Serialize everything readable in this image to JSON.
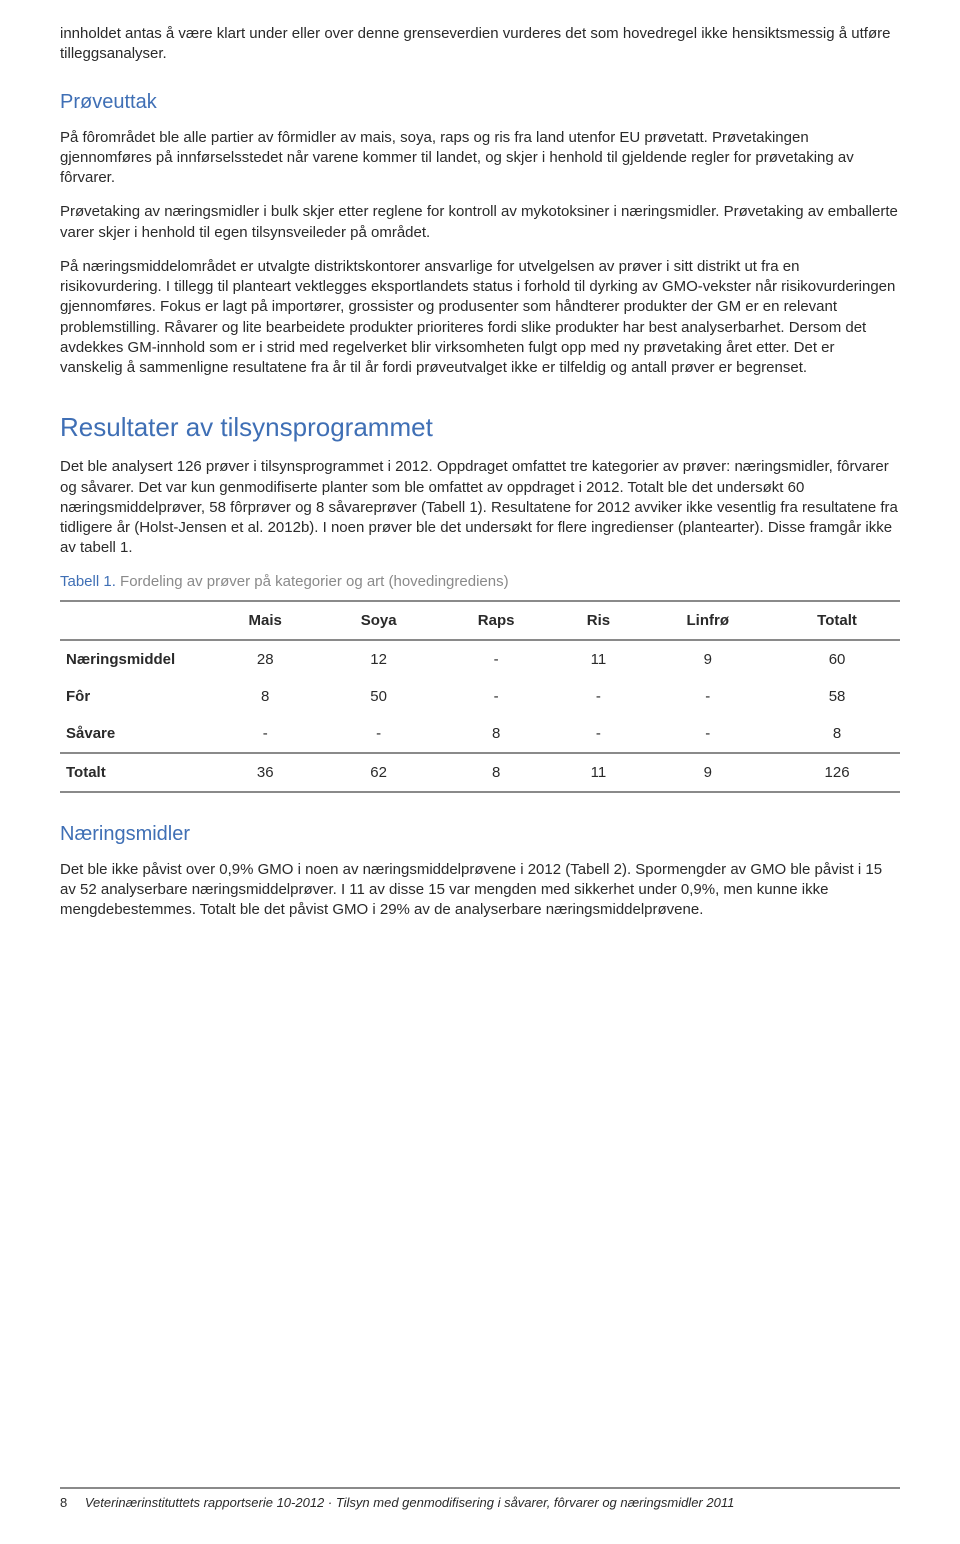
{
  "intro_para": "innholdet antas å være klart under eller over denne grenseverdien vurderes det som hovedregel ikke hensiktsmessig å utføre tilleggsanalyser.",
  "h_proveuttak": "Prøveuttak",
  "proveuttak_p1": "På fôrområdet ble alle partier av fôrmidler av mais, soya, raps og ris fra land utenfor EU prøvetatt. Prøvetakingen gjennomføres på innførselsstedet når varene kommer til landet, og skjer i henhold til gjeldende regler for prøvetaking av fôrvarer.",
  "proveuttak_p2": "Prøvetaking av næringsmidler i bulk skjer etter reglene for kontroll av mykotoksiner i næringsmidler. Prøvetaking av emballerte varer skjer i henhold til egen tilsynsveileder på området.",
  "proveuttak_p3": "På næringsmiddelområdet er utvalgte distriktskontorer ansvarlige for utvelgelsen av prøver i sitt distrikt ut fra en risikovurdering. I tillegg til planteart vektlegges eksportlandets status i forhold til dyrking av GMO-vekster når risikovurderingen gjennomføres. Fokus er lagt på importører, grossister og produsenter som håndterer produkter der GM er en relevant problemstilling. Råvarer og lite bearbeidete produkter prioriteres fordi slike produkter har best analyserbarhet. Dersom det avdekkes GM-innhold som er i strid med regelverket blir virksomheten fulgt opp med ny prøvetaking året etter. Det er vanskelig å sammenligne resultatene fra år til år fordi prøveutvalget ikke er tilfeldig og antall prøver er begrenset.",
  "h_resultater": "Resultater av tilsynsprogrammet",
  "resultater_p1": "Det ble analysert 126 prøver i tilsynsprogrammet i 2012. Oppdraget omfattet tre kategorier av prøver: næringsmidler, fôrvarer og såvarer. Det var kun genmodifiserte planter som ble omfattet av oppdraget i 2012. Totalt ble det undersøkt 60 næringsmiddelprøver, 58 fôrprøver og 8 såvareprøver (Tabell 1). Resultatene for 2012 avviker ikke vesentlig fra resultatene fra tidligere år (Holst-Jensen et al. 2012b). I noen prøver ble det undersøkt for flere ingredienser (plantearter). Disse framgår ikke av tabell 1.",
  "table_caption_label": "Tabell 1.",
  "table_caption_desc": " Fordeling av prøver på kategorier og art (hovedingrediens)",
  "table": {
    "columns": [
      "",
      "Mais",
      "Soya",
      "Raps",
      "Ris",
      "Linfrø",
      "Totalt"
    ],
    "rows": [
      [
        "Næringsmiddel",
        "28",
        "12",
        "-",
        "11",
        "9",
        "60"
      ],
      [
        "Fôr",
        "8",
        "50",
        "-",
        "-",
        "-",
        "58"
      ],
      [
        "Såvare",
        "-",
        "-",
        "8",
        "-",
        "-",
        "8"
      ],
      [
        "Totalt",
        "36",
        "62",
        "8",
        "11",
        "9",
        "126"
      ]
    ]
  },
  "h_naeringsmidler": "Næringsmidler",
  "naeringsmidler_p1": "Det ble ikke påvist over 0,9% GMO i noen av næringsmiddelprøvene i 2012 (Tabell 2). Spormengder av GMO ble påvist i 15 av 52 analyserbare næringsmiddelprøver. I 11 av disse 15 var mengden med sikkerhet under 0,9%, men kunne ikke mengdebestemmes. Totalt ble det påvist GMO i 29% av de analyserbare næringsmiddelprøvene.",
  "footer_page": "8",
  "footer_text": "Veterinærinstituttets rapportserie 10-2012 · Tilsyn med genmodifisering i såvarer, fôrvarer og næringsmidler 2011"
}
